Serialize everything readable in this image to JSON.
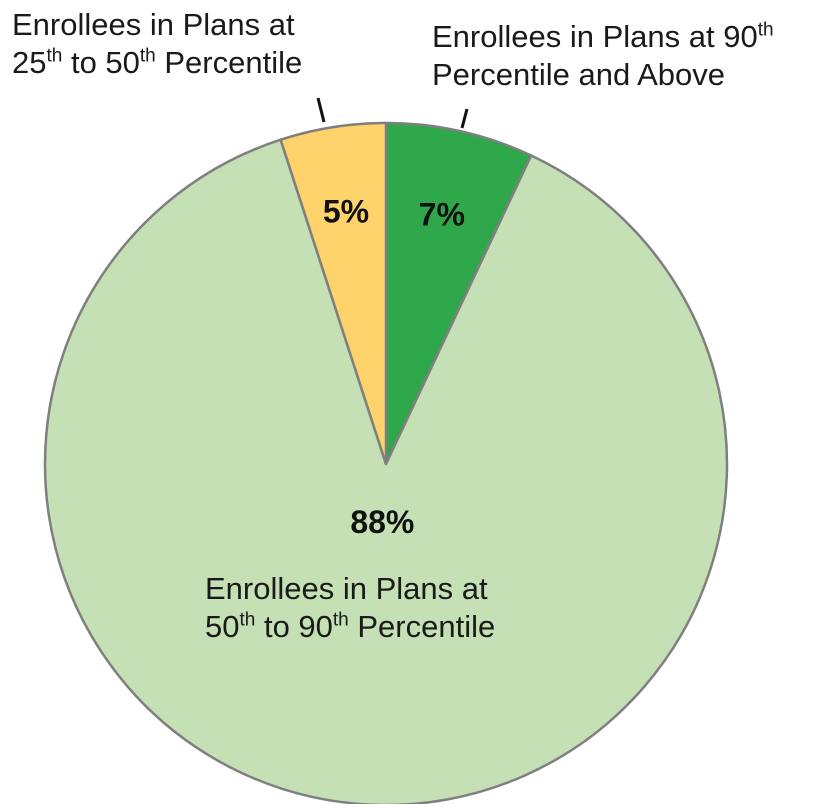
{
  "chart_data": {
    "type": "pie",
    "slices": [
      {
        "label_lines": [
          [
            "Enrollees in Plans at 90",
            "th",
            ""
          ],
          [
            "Percentile and Above",
            "",
            ""
          ]
        ],
        "value": 7,
        "value_label": "7%",
        "color": "#2ea84a"
      },
      {
        "label_lines": [
          [
            "Enrollees in Plans at",
            "",
            ""
          ],
          [
            "50",
            "th",
            " to 90",
            "th",
            " Percentile"
          ]
        ],
        "value": 88,
        "value_label": "88%",
        "color": "#c5e0b4"
      },
      {
        "label_lines": [
          [
            "Enrollees in Plans at",
            "",
            ""
          ],
          [
            "25",
            "th",
            " to 50",
            "th",
            " Percentile"
          ]
        ],
        "value": 5,
        "value_label": "5%",
        "color": "#ffd36b"
      }
    ],
    "start_angle": "12 o'clock",
    "direction": "clockwise",
    "slice_border_color": "#7f7f7f"
  }
}
